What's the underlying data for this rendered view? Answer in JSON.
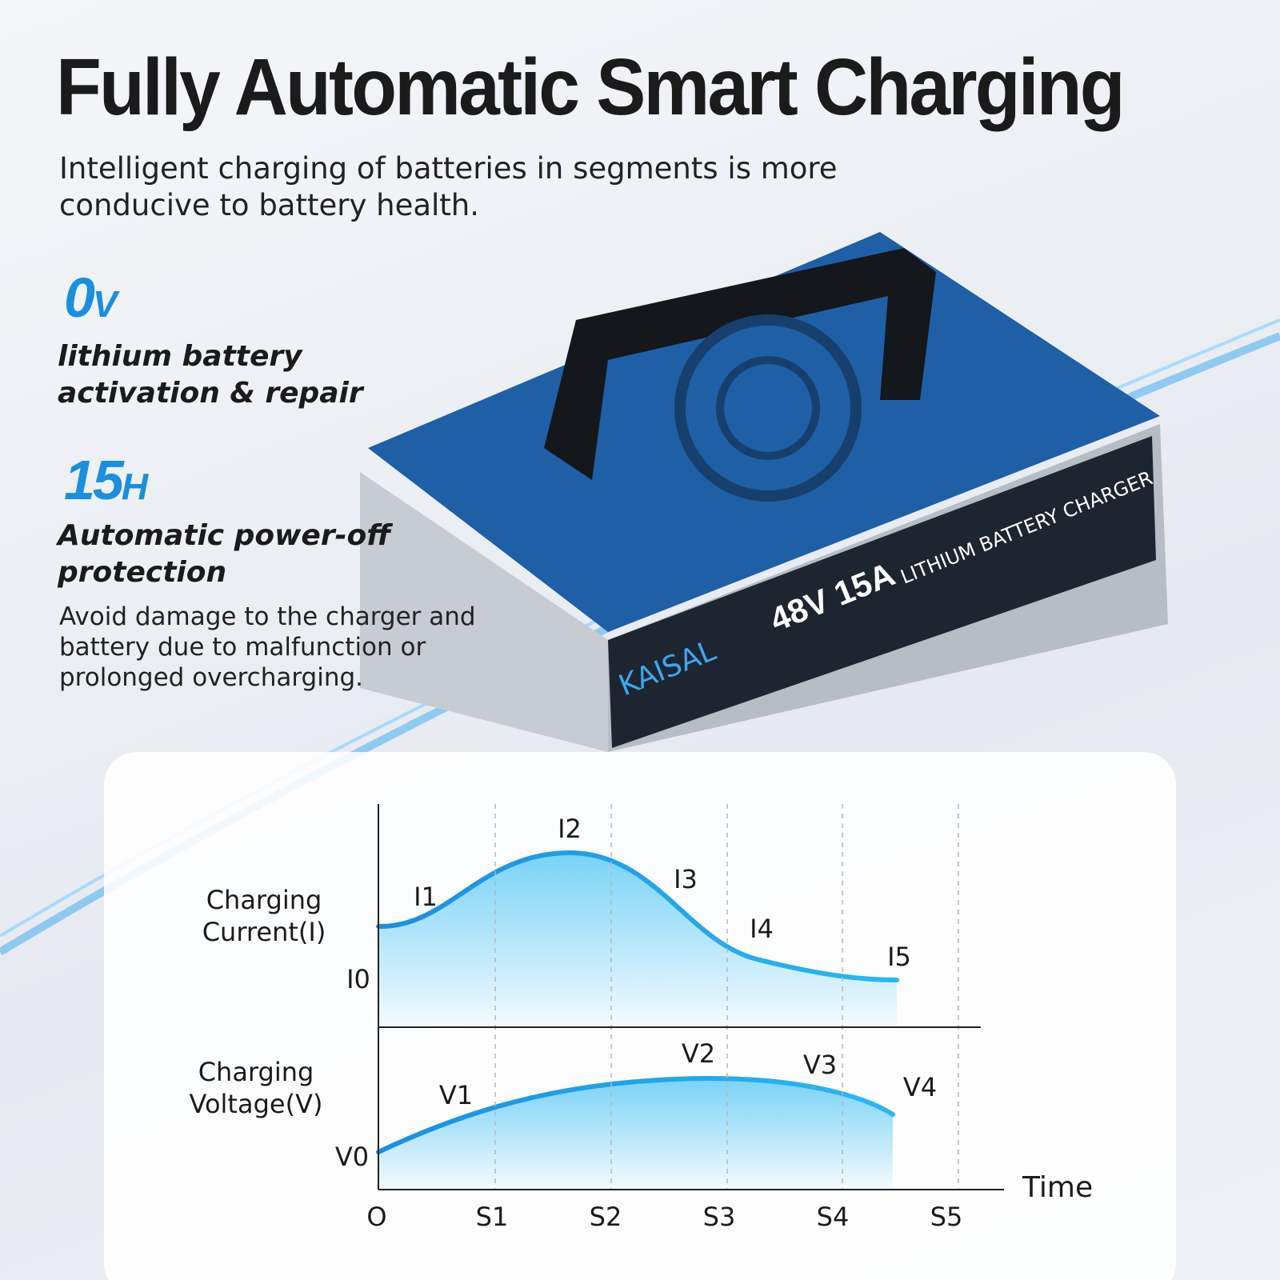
{
  "header": {
    "title": "Fully Automatic Smart Charging",
    "subtitle": "Intelligent charging of batteries in segments is more conducive to battery health."
  },
  "features": [
    {
      "value": "0",
      "unit": "V",
      "label": "lithium battery activation & repair"
    },
    {
      "value": "15",
      "unit": "H",
      "label": "Automatic power-off protection",
      "description": "Avoid damage to the charger and battery due to malfunction or prolonged overcharging."
    }
  ],
  "product": {
    "brand": "KAISAL",
    "model": "48V 15A",
    "name": "LITHIUM BATTERY CHARGER"
  },
  "diagram": {
    "current_axis_label": "Charging Current(I)",
    "voltage_axis_label": "Charging Voltage(V)",
    "x_axis_label": "Time",
    "x_ticks": [
      "O",
      "S1",
      "S2",
      "S3",
      "S4",
      "S5"
    ],
    "current_points": [
      "I0",
      "I1",
      "I2",
      "I3",
      "I4",
      "I5"
    ],
    "voltage_points": [
      "V0",
      "V1",
      "V2",
      "V3",
      "V4"
    ]
  }
}
